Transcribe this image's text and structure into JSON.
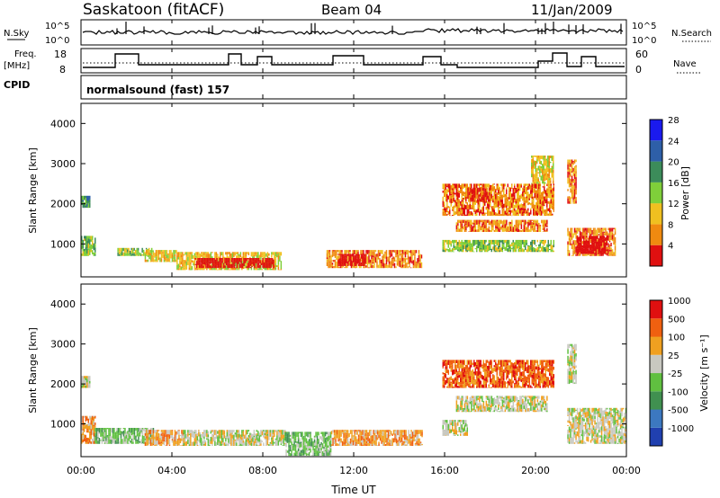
{
  "header": {
    "station": "Saskatoon (fitACF)",
    "beam": "Beam 04",
    "date": "11/Jan/2009"
  },
  "noise_panel": {
    "left_label": "N.Sky",
    "right_label": "N.Search",
    "tick_top": "10^5",
    "tick_bottom": "10^0"
  },
  "freq_panel": {
    "left_label_1": "Freq.",
    "left_label_2": "[MHz]",
    "right_label": "Nave",
    "left_ticks": [
      "18",
      "8"
    ],
    "right_ticks": [
      "60",
      "0"
    ]
  },
  "cpid": {
    "label": "CPID",
    "program": "normalsound (fast) 157"
  },
  "chart_data": [
    {
      "type": "heatmap",
      "title": "",
      "ylabel": "Slant Range [km]",
      "xlabel": "",
      "ylim": [
        180,
        4500
      ],
      "yticks": [
        "1000",
        "2000",
        "3000",
        "4000"
      ],
      "colorbar_label": "Power [dB]",
      "colorbar_ticks": [
        "4",
        "8",
        "12",
        "16",
        "20",
        "24",
        "28"
      ],
      "colors": [
        "#1a1aee",
        "#2e5fa8",
        "#3c8c5a",
        "#7fcf3a",
        "#f0c020",
        "#f08a10",
        "#e01010"
      ],
      "regions": [
        {
          "t": [
            0.0,
            0.4
          ],
          "r": [
            1900,
            2200
          ],
          "level": 2
        },
        {
          "t": [
            0.0,
            0.6
          ],
          "r": [
            700,
            1200
          ],
          "level": 3
        },
        {
          "t": [
            1.6,
            3.2
          ],
          "r": [
            700,
            900
          ],
          "level": 3
        },
        {
          "t": [
            2.8,
            4.2
          ],
          "r": [
            550,
            850
          ],
          "level": 4
        },
        {
          "t": [
            4.2,
            8.8
          ],
          "r": [
            350,
            800
          ],
          "level": 4
        },
        {
          "t": [
            5.0,
            8.5
          ],
          "r": [
            400,
            650
          ],
          "level": 7
        },
        {
          "t": [
            10.8,
            15.0
          ],
          "r": [
            400,
            850
          ],
          "level": 5
        },
        {
          "t": [
            11.3,
            12.5
          ],
          "r": [
            450,
            750
          ],
          "level": 7
        },
        {
          "t": [
            15.9,
            20.8
          ],
          "r": [
            1700,
            2500
          ],
          "level": 5
        },
        {
          "t": [
            17.0,
            18.0
          ],
          "r": [
            2050,
            2400
          ],
          "level": 6
        },
        {
          "t": [
            16.5,
            20.5
          ],
          "r": [
            1300,
            1600
          ],
          "level": 5
        },
        {
          "t": [
            15.9,
            20.8
          ],
          "r": [
            800,
            1100
          ],
          "level": 3
        },
        {
          "t": [
            19.8,
            20.8
          ],
          "r": [
            2500,
            3200
          ],
          "level": 4
        },
        {
          "t": [
            21.4,
            23.5
          ],
          "r": [
            700,
            1400
          ],
          "level": 5
        },
        {
          "t": [
            21.8,
            23.2
          ],
          "r": [
            750,
            1200
          ],
          "level": 7
        },
        {
          "t": [
            21.4,
            21.8
          ],
          "r": [
            2000,
            3100
          ],
          "level": 5
        }
      ]
    },
    {
      "type": "heatmap",
      "title": "",
      "ylabel": "Slant Range [km]",
      "xlabel": "Time UT",
      "xlim": [
        "00:00",
        "00:00"
      ],
      "xticks": [
        "00:00",
        "04:00",
        "08:00",
        "12:00",
        "16:00",
        "20:00",
        "00:00"
      ],
      "ylim": [
        180,
        4500
      ],
      "yticks": [
        "1000",
        "2000",
        "3000",
        "4000"
      ],
      "colorbar_label": "Velocity [m s⁻¹]",
      "colorbar_ticks": [
        "1000",
        "500",
        "100",
        "25",
        "-25",
        "-100",
        "-500",
        "-1000"
      ],
      "colors": [
        "#2040b0",
        "#3c78c0",
        "#409050",
        "#60c040",
        "#c8c8c0",
        "#f0a020",
        "#f06010",
        "#e01010"
      ],
      "regions": [
        {
          "t": [
            0.0,
            0.4
          ],
          "r": [
            1900,
            2200
          ],
          "level": 4
        },
        {
          "t": [
            0.0,
            0.6
          ],
          "r": [
            500,
            1200
          ],
          "level": 5
        },
        {
          "t": [
            0.6,
            3.2
          ],
          "r": [
            500,
            900
          ],
          "level": 3
        },
        {
          "t": [
            2.8,
            4.5
          ],
          "r": [
            450,
            850
          ],
          "level": 5
        },
        {
          "t": [
            4.5,
            9.0
          ],
          "r": [
            450,
            850
          ],
          "level": 4
        },
        {
          "t": [
            9.0,
            11.0
          ],
          "r": [
            200,
            800
          ],
          "level": 3
        },
        {
          "t": [
            11.0,
            15.0
          ],
          "r": [
            450,
            850
          ],
          "level": 5
        },
        {
          "t": [
            15.9,
            20.8
          ],
          "r": [
            1900,
            2600
          ],
          "level": 6
        },
        {
          "t": [
            16.5,
            20.5
          ],
          "r": [
            1300,
            1700
          ],
          "level": 4
        },
        {
          "t": [
            15.9,
            17.0
          ],
          "r": [
            700,
            1100
          ],
          "level": 4
        },
        {
          "t": [
            21.4,
            24.0
          ],
          "r": [
            500,
            1400
          ],
          "level": 4
        },
        {
          "t": [
            21.4,
            21.8
          ],
          "r": [
            2000,
            3000
          ],
          "level": 4
        }
      ]
    }
  ]
}
